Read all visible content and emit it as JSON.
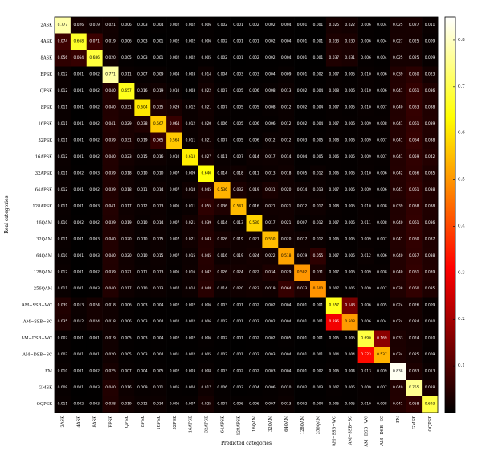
{
  "chart_data": {
    "type": "heatmap",
    "title": "",
    "xlabel": "Predicted categories",
    "ylabel": "Real categories",
    "categories": [
      "2ASK",
      "4ASK",
      "8ASK",
      "BPSK",
      "QPSK",
      "8PSK",
      "16PSK",
      "32PSK",
      "16APSK",
      "32APSK",
      "64APSK",
      "128APSK",
      "16QAM",
      "32QAM",
      "64QAM",
      "128QAM",
      "256QAM",
      "AM−SSB−WC",
      "AM−SSB−SC",
      "AM−DSB−WC",
      "AM−DSB−SC",
      "FM",
      "GMSK",
      "OQPSK"
    ],
    "colorbar": {
      "range": [
        0,
        0.85
      ],
      "ticks": [
        "0.1",
        "0.2",
        "0.3",
        "0.4",
        "0.5",
        "0.6",
        "0.7",
        "0.8"
      ],
      "colormap": "hot"
    },
    "values": [
      [
        "0.777",
        "0.026",
        "0.019",
        "0.021",
        "0.006",
        "0.003",
        "0.004",
        "0.002",
        "0.002",
        "0.006",
        "0.002",
        "0.001",
        "0.002",
        "0.002",
        "0.004",
        "0.001",
        "0.001",
        "0.025",
        "0.022",
        "0.006",
        "0.004",
        "0.025",
        "0.027",
        "0.011"
      ],
      [
        "0.074",
        "0.668",
        "0.071",
        "0.019",
        "0.006",
        "0.003",
        "0.001",
        "0.002",
        "0.002",
        "0.006",
        "0.002",
        "0.001",
        "0.001",
        "0.002",
        "0.004",
        "0.001",
        "0.001",
        "0.033",
        "0.030",
        "0.006",
        "0.004",
        "0.027",
        "0.025",
        "0.009"
      ],
      [
        "0.056",
        "0.064",
        "0.686",
        "0.020",
        "0.005",
        "0.003",
        "0.001",
        "0.002",
        "0.002",
        "0.005",
        "0.002",
        "0.001",
        "0.002",
        "0.002",
        "0.004",
        "0.001",
        "0.001",
        "0.037",
        "0.031",
        "0.006",
        "0.004",
        "0.025",
        "0.025",
        "0.009"
      ],
      [
        "0.012",
        "0.001",
        "0.002",
        "0.771",
        "0.011",
        "0.007",
        "0.009",
        "0.004",
        "0.003",
        "0.014",
        "0.004",
        "0.003",
        "0.003",
        "0.004",
        "0.009",
        "0.001",
        "0.002",
        "0.007",
        "0.005",
        "0.010",
        "0.006",
        "0.039",
        "0.050",
        "0.023"
      ],
      [
        "0.012",
        "0.001",
        "0.002",
        "0.040",
        "0.657",
        "0.016",
        "0.019",
        "0.010",
        "0.003",
        "0.022",
        "0.007",
        "0.005",
        "0.006",
        "0.008",
        "0.013",
        "0.002",
        "0.004",
        "0.008",
        "0.006",
        "0.010",
        "0.006",
        "0.041",
        "0.061",
        "0.036"
      ],
      [
        "0.011",
        "0.001",
        "0.002",
        "0.040",
        "0.031",
        "0.604",
        "0.035",
        "0.029",
        "0.012",
        "0.021",
        "0.007",
        "0.005",
        "0.005",
        "0.008",
        "0.012",
        "0.002",
        "0.004",
        "0.007",
        "0.005",
        "0.010",
        "0.007",
        "0.040",
        "0.063",
        "0.038"
      ],
      [
        "0.011",
        "0.001",
        "0.002",
        "0.041",
        "0.029",
        "0.038",
        "0.567",
        "0.064",
        "0.012",
        "0.020",
        "0.006",
        "0.005",
        "0.006",
        "0.006",
        "0.012",
        "0.002",
        "0.004",
        "0.007",
        "0.006",
        "0.009",
        "0.008",
        "0.041",
        "0.061",
        "0.039"
      ],
      [
        "0.011",
        "0.001",
        "0.002",
        "0.039",
        "0.031",
        "0.019",
        "0.065",
        "0.564",
        "0.011",
        "0.021",
        "0.007",
        "0.005",
        "0.006",
        "0.012",
        "0.012",
        "0.003",
        "0.005",
        "0.008",
        "0.006",
        "0.009",
        "0.007",
        "0.041",
        "0.064",
        "0.038"
      ],
      [
        "0.012",
        "0.001",
        "0.002",
        "0.040",
        "0.023",
        "0.015",
        "0.016",
        "0.010",
        "0.613",
        "0.027",
        "0.011",
        "0.007",
        "0.014",
        "0.017",
        "0.014",
        "0.004",
        "0.005",
        "0.006",
        "0.005",
        "0.009",
        "0.007",
        "0.041",
        "0.059",
        "0.042"
      ],
      [
        "0.011",
        "0.002",
        "0.003",
        "0.039",
        "0.018",
        "0.010",
        "0.010",
        "0.007",
        "0.009",
        "0.640",
        "0.014",
        "0.018",
        "0.011",
        "0.013",
        "0.018",
        "0.005",
        "0.012",
        "0.006",
        "0.005",
        "0.010",
        "0.006",
        "0.042",
        "0.056",
        "0.035"
      ],
      [
        "0.012",
        "0.001",
        "0.002",
        "0.039",
        "0.018",
        "0.011",
        "0.014",
        "0.007",
        "0.018",
        "0.045",
        "0.536",
        "0.032",
        "0.019",
        "0.031",
        "0.020",
        "0.014",
        "0.013",
        "0.007",
        "0.005",
        "0.009",
        "0.006",
        "0.041",
        "0.061",
        "0.038"
      ],
      [
        "0.011",
        "0.001",
        "0.003",
        "0.041",
        "0.017",
        "0.012",
        "0.013",
        "0.006",
        "0.011",
        "0.055",
        "0.036",
        "0.547",
        "0.016",
        "0.021",
        "0.021",
        "0.012",
        "0.017",
        "0.008",
        "0.005",
        "0.010",
        "0.008",
        "0.039",
        "0.058",
        "0.038"
      ],
      [
        "0.010",
        "0.002",
        "0.002",
        "0.039",
        "0.019",
        "0.010",
        "0.014",
        "0.007",
        "0.021",
        "0.039",
        "0.014",
        "0.013",
        "0.580",
        "0.017",
        "0.021",
        "0.007",
        "0.012",
        "0.007",
        "0.005",
        "0.011",
        "0.008",
        "0.040",
        "0.061",
        "0.036"
      ],
      [
        "0.011",
        "0.001",
        "0.003",
        "0.040",
        "0.020",
        "0.010",
        "0.015",
        "0.007",
        "0.021",
        "0.043",
        "0.026",
        "0.019",
        "0.021",
        "0.550",
        "0.020",
        "0.017",
        "0.012",
        "0.006",
        "0.005",
        "0.009",
        "0.007",
        "0.041",
        "0.060",
        "0.037"
      ],
      [
        "0.010",
        "0.001",
        "0.003",
        "0.040",
        "0.020",
        "0.010",
        "0.015",
        "0.007",
        "0.015",
        "0.045",
        "0.016",
        "0.019",
        "0.024",
        "0.022",
        "0.518",
        "0.019",
        "0.055",
        "0.007",
        "0.005",
        "0.012",
        "0.006",
        "0.040",
        "0.057",
        "0.038"
      ],
      [
        "0.012",
        "0.001",
        "0.002",
        "0.039",
        "0.021",
        "0.011",
        "0.013",
        "0.006",
        "0.016",
        "0.042",
        "0.026",
        "0.024",
        "0.022",
        "0.034",
        "0.029",
        "0.502",
        "0.031",
        "0.007",
        "0.006",
        "0.009",
        "0.008",
        "0.040",
        "0.061",
        "0.039"
      ],
      [
        "0.011",
        "0.001",
        "0.003",
        "0.040",
        "0.017",
        "0.010",
        "0.013",
        "0.007",
        "0.014",
        "0.048",
        "0.014",
        "0.020",
        "0.023",
        "0.019",
        "0.064",
        "0.033",
        "0.500",
        "0.007",
        "0.005",
        "0.009",
        "0.007",
        "0.038",
        "0.060",
        "0.035"
      ],
      [
        "0.039",
        "0.013",
        "0.024",
        "0.018",
        "0.006",
        "0.003",
        "0.004",
        "0.002",
        "0.002",
        "0.006",
        "0.003",
        "0.001",
        "0.002",
        "0.002",
        "0.004",
        "0.001",
        "0.001",
        "0.657",
        "0.143",
        "0.006",
        "0.005",
        "0.024",
        "0.026",
        "0.009"
      ],
      [
        "0.035",
        "0.012",
        "0.024",
        "0.018",
        "0.006",
        "0.003",
        "0.004",
        "0.002",
        "0.002",
        "0.006",
        "0.002",
        "0.001",
        "0.002",
        "0.002",
        "0.004",
        "0.001",
        "0.001",
        "0.296",
        "0.508",
        "0.006",
        "0.004",
        "0.024",
        "0.024",
        "0.010"
      ],
      [
        "0.007",
        "0.001",
        "0.001",
        "0.019",
        "0.005",
        "0.003",
        "0.004",
        "0.002",
        "0.002",
        "0.006",
        "0.002",
        "0.001",
        "0.002",
        "0.002",
        "0.005",
        "0.001",
        "0.001",
        "0.005",
        "0.005",
        "0.690",
        "0.169",
        "0.033",
        "0.024",
        "0.010"
      ],
      [
        "0.007",
        "0.001",
        "0.001",
        "0.020",
        "0.005",
        "0.003",
        "0.004",
        "0.001",
        "0.002",
        "0.005",
        "0.002",
        "0.001",
        "0.002",
        "0.003",
        "0.004",
        "0.001",
        "0.001",
        "0.004",
        "0.004",
        "0.323",
        "0.537",
        "0.034",
        "0.025",
        "0.009"
      ],
      [
        "0.010",
        "0.001",
        "0.002",
        "0.025",
        "0.007",
        "0.004",
        "0.005",
        "0.002",
        "0.003",
        "0.008",
        "0.003",
        "0.002",
        "0.002",
        "0.003",
        "0.004",
        "0.001",
        "0.002",
        "0.006",
        "0.004",
        "0.013",
        "0.009",
        "0.838",
        "0.033",
        "0.013"
      ],
      [
        "0.009",
        "0.001",
        "0.003",
        "0.040",
        "0.016",
        "0.009",
        "0.011",
        "0.005",
        "0.004",
        "0.017",
        "0.006",
        "0.003",
        "0.004",
        "0.006",
        "0.010",
        "0.002",
        "0.003",
        "0.007",
        "0.005",
        "0.009",
        "0.007",
        "0.040",
        "0.755",
        "0.028"
      ],
      [
        "0.011",
        "0.002",
        "0.003",
        "0.038",
        "0.019",
        "0.012",
        "0.014",
        "0.006",
        "0.007",
        "0.025",
        "0.007",
        "0.006",
        "0.006",
        "0.007",
        "0.013",
        "0.002",
        "0.004",
        "0.006",
        "0.005",
        "0.010",
        "0.008",
        "0.041",
        "0.058",
        "0.693"
      ]
    ]
  }
}
